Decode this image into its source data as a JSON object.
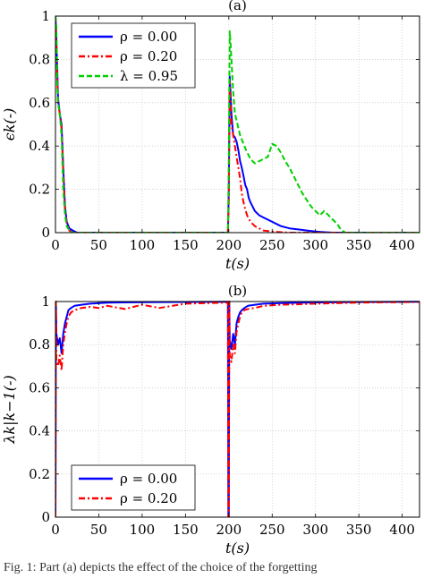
{
  "caption": "Fig. 1: Part (a) depicts the effect of the choice of the forgetting",
  "chart_data": [
    {
      "panel_label": "(a)",
      "type": "line",
      "xlabel": "t(s)",
      "ylabel": "ϵk(-)",
      "xlim": [
        0,
        420
      ],
      "ylim": [
        0,
        1
      ],
      "xticks": [
        0,
        50,
        100,
        150,
        200,
        250,
        300,
        350,
        400
      ],
      "yticks": [
        0,
        0.2,
        0.4,
        0.6,
        0.8,
        1
      ],
      "grid": true,
      "legend_position": "top-left",
      "series": [
        {
          "name": "ρ = 0.00",
          "color": "#0000ff",
          "style": "solid",
          "x": [
            0,
            1,
            3,
            5,
            7,
            9,
            11,
            13,
            16,
            20,
            25,
            40,
            100,
            199,
            200,
            201,
            202,
            203,
            204,
            205,
            207,
            209,
            211,
            213,
            215,
            217,
            219,
            221,
            223,
            225,
            230,
            235,
            240,
            245,
            250,
            255,
            260,
            270,
            280,
            290,
            300,
            310,
            320,
            330,
            420
          ],
          "y": [
            1.0,
            0.9,
            0.62,
            0.55,
            0.5,
            0.3,
            0.12,
            0.05,
            0.02,
            0.01,
            0.0,
            0.0,
            0.0,
            0.0,
            0.2,
            0.72,
            0.65,
            0.55,
            0.5,
            0.45,
            0.44,
            0.42,
            0.38,
            0.33,
            0.3,
            0.26,
            0.22,
            0.2,
            0.16,
            0.14,
            0.1,
            0.08,
            0.07,
            0.06,
            0.05,
            0.04,
            0.03,
            0.02,
            0.015,
            0.01,
            0.005,
            0.002,
            0.0,
            0.0,
            0.0
          ]
        },
        {
          "name": "ρ = 0.20",
          "color": "#ff0000",
          "style": "dashdot",
          "x": [
            0,
            1,
            3,
            5,
            7,
            9,
            11,
            13,
            16,
            20,
            100,
            199,
            200,
            201,
            202,
            203,
            205,
            207,
            209,
            211,
            213,
            215,
            218,
            221,
            225,
            230,
            235,
            240,
            250,
            260,
            270,
            420
          ],
          "y": [
            1.0,
            0.85,
            0.6,
            0.55,
            0.48,
            0.28,
            0.1,
            0.04,
            0.01,
            0.0,
            0.0,
            0.0,
            0.15,
            0.7,
            0.6,
            0.5,
            0.45,
            0.4,
            0.35,
            0.3,
            0.25,
            0.18,
            0.12,
            0.08,
            0.05,
            0.03,
            0.02,
            0.01,
            0.005,
            0.002,
            0.0,
            0.0
          ]
        },
        {
          "name": "λ = 0.95",
          "color": "#00d000",
          "style": "dashed",
          "x": [
            0,
            1,
            2,
            3,
            5,
            7,
            9,
            11,
            13,
            16,
            20,
            100,
            199,
            200,
            201,
            202,
            203,
            205,
            207,
            210,
            213,
            216,
            220,
            225,
            230,
            235,
            240,
            245,
            250,
            255,
            260,
            265,
            270,
            275,
            280,
            285,
            290,
            295,
            300,
            305,
            310,
            315,
            320,
            325,
            330,
            335,
            420
          ],
          "y": [
            1.0,
            0.95,
            0.7,
            0.6,
            0.55,
            0.45,
            0.2,
            0.08,
            0.03,
            0.01,
            0.0,
            0.0,
            0.0,
            0.35,
            0.93,
            0.88,
            0.8,
            0.65,
            0.55,
            0.5,
            0.45,
            0.42,
            0.38,
            0.34,
            0.32,
            0.33,
            0.34,
            0.35,
            0.41,
            0.4,
            0.37,
            0.33,
            0.3,
            0.26,
            0.22,
            0.18,
            0.15,
            0.12,
            0.1,
            0.08,
            0.1,
            0.08,
            0.06,
            0.04,
            0.01,
            0.0,
            0.0
          ]
        }
      ]
    },
    {
      "panel_label": "(b)",
      "type": "line",
      "xlabel": "t(s)",
      "ylabel": "λk|k−1(-)",
      "xlim": [
        0,
        420
      ],
      "ylim": [
        0,
        1
      ],
      "xticks": [
        0,
        50,
        100,
        150,
        200,
        250,
        300,
        350,
        400
      ],
      "yticks": [
        0,
        0.2,
        0.4,
        0.6,
        0.8,
        1
      ],
      "grid": true,
      "legend_position": "bottom-left",
      "series": [
        {
          "name": "ρ = 0.00",
          "color": "#0000ff",
          "style": "solid",
          "x": [
            0,
            0.5,
            1,
            3,
            5,
            7,
            9,
            11,
            13,
            15,
            18,
            22,
            30,
            40,
            60,
            100,
            150,
            199,
            199.5,
            200,
            200.5,
            201,
            203,
            205,
            207,
            209,
            211,
            213,
            215,
            218,
            222,
            230,
            240,
            260,
            300,
            350,
            420
          ],
          "y": [
            0.0,
            1.0,
            0.85,
            0.8,
            0.83,
            0.76,
            0.85,
            0.9,
            0.93,
            0.96,
            0.97,
            0.98,
            0.985,
            0.99,
            0.995,
            0.997,
            0.998,
            0.999,
            0.0,
            0.0,
            1.0,
            0.82,
            0.78,
            0.85,
            0.8,
            0.9,
            0.93,
            0.95,
            0.96,
            0.97,
            0.98,
            0.985,
            0.99,
            0.993,
            0.996,
            0.998,
            0.999
          ]
        },
        {
          "name": "ρ = 0.20",
          "color": "#ff0000",
          "style": "dashdot",
          "x": [
            0,
            0.5,
            1,
            3,
            5,
            7,
            9,
            11,
            13,
            15,
            18,
            22,
            30,
            40,
            50,
            60,
            80,
            100,
            120,
            150,
            199,
            199.5,
            200,
            200.5,
            201,
            203,
            205,
            207,
            209,
            211,
            213,
            215,
            218,
            222,
            230,
            240,
            260,
            300,
            350,
            420
          ],
          "y": [
            0.0,
            1.0,
            0.72,
            0.7,
            0.75,
            0.68,
            0.8,
            0.86,
            0.9,
            0.93,
            0.95,
            0.96,
            0.97,
            0.975,
            0.97,
            0.98,
            0.965,
            0.985,
            0.97,
            0.99,
            0.995,
            0.0,
            0.0,
            1.0,
            0.75,
            0.72,
            0.8,
            0.76,
            0.86,
            0.9,
            0.93,
            0.95,
            0.96,
            0.965,
            0.97,
            0.98,
            0.985,
            0.99,
            0.995,
            0.998
          ]
        }
      ]
    }
  ]
}
